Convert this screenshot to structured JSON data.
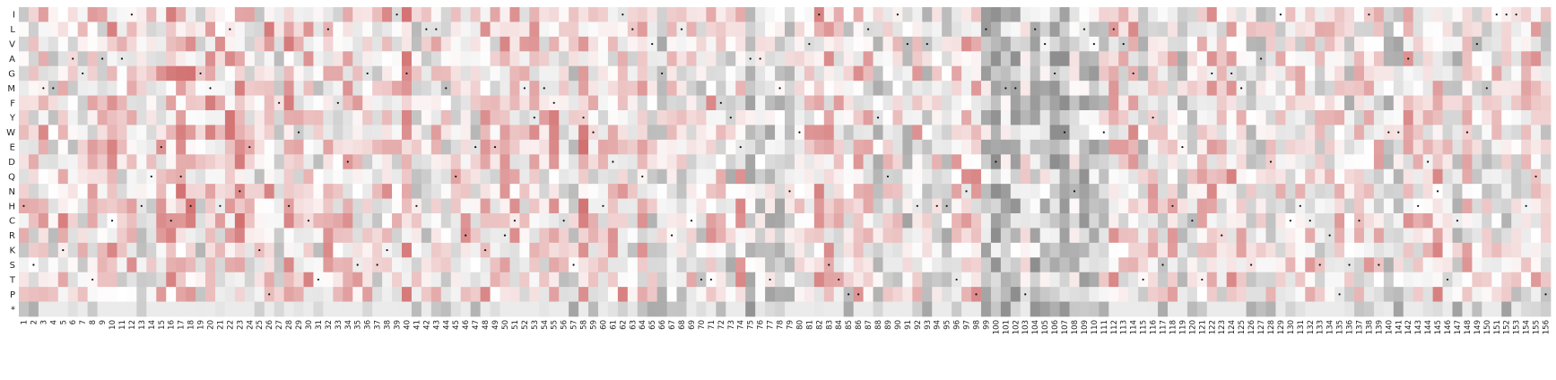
{
  "chart_data": {
    "type": "heatmap",
    "title": "",
    "xlabel": "",
    "ylabel": "",
    "rows": [
      "I",
      "L",
      "V",
      "A",
      "G",
      "M",
      "F",
      "Y",
      "W",
      "E",
      "D",
      "Q",
      "N",
      "H",
      "C",
      "R",
      "K",
      "S",
      "T",
      "P",
      "*"
    ],
    "columns_start": 1,
    "columns_end": 156,
    "value_range": [
      -1,
      1
    ],
    "colormap": {
      "negative": "#7a7a7a",
      "zero": "#ffffff",
      "positive": "#c23b3b"
    },
    "cells_note": "",
    "dot_color": "#111111",
    "seed": 20240607
  }
}
